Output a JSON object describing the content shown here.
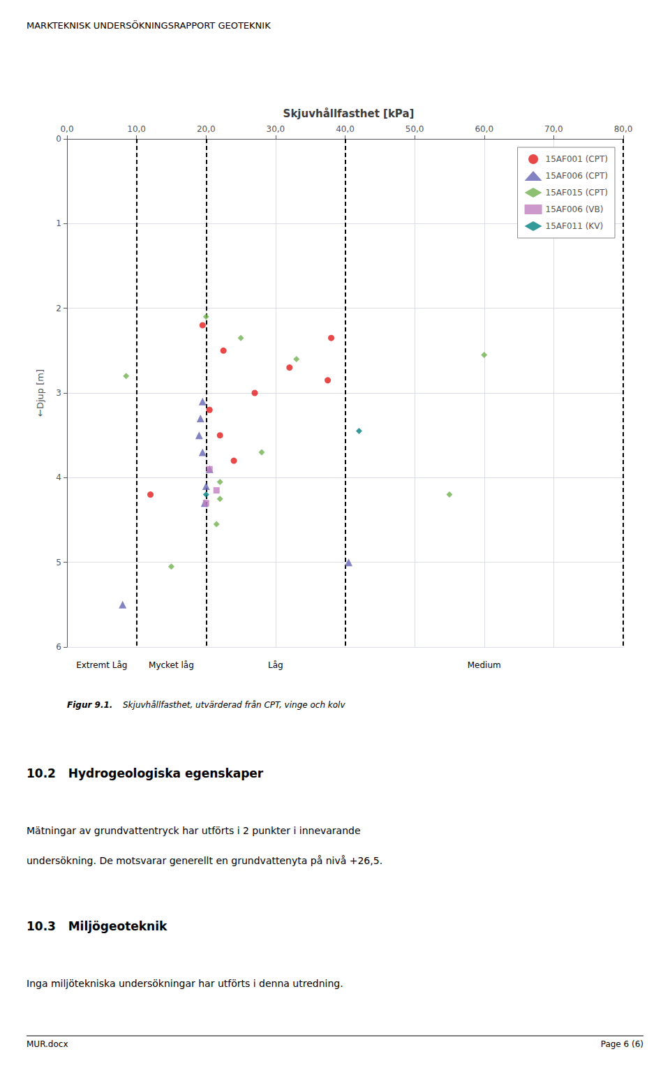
{
  "chart_data": {
    "type": "scatter",
    "header": "MARKTEKNISK UNDERSÖKNINGSRAPPORT GEOTEKNIK",
    "title": "Skjuvhållfasthet [kPa]",
    "ylabel": "←Djup [m]",
    "xlim": [
      0,
      80
    ],
    "ylim": [
      6,
      0
    ],
    "xticks": [
      {
        "value": 0,
        "label": "0,0"
      },
      {
        "value": 10,
        "label": "10,0"
      },
      {
        "value": 20,
        "label": "20,0"
      },
      {
        "value": 30,
        "label": "30,0"
      },
      {
        "value": 40,
        "label": "40,0"
      },
      {
        "value": 50,
        "label": "50,0"
      },
      {
        "value": 60,
        "label": "60,0"
      },
      {
        "value": 70,
        "label": "70,0"
      },
      {
        "value": 80,
        "label": "80,0"
      }
    ],
    "yticks": [
      0,
      1,
      2,
      3,
      4,
      5,
      6
    ],
    "grid": true,
    "legend": "upper right",
    "vlines": [
      10,
      20,
      40,
      80
    ],
    "annotations": [
      {
        "text": "Extremt Låg",
        "x": 5
      },
      {
        "text": "Mycket låg",
        "x": 15
      },
      {
        "text": "Låg",
        "x": 30
      },
      {
        "text": "Medium",
        "x": 60
      }
    ],
    "caption": [
      "Figur 9.1.",
      "Skjuvhållfasthet, utvärderad från CPT, vinge och kolv"
    ],
    "sections": [
      {
        "title": "10.2   Hydrogeologiska egenskaper",
        "paragraphs": [
          "Mätningar av grundvattentryck har utförts i 2 punkter i innevarande",
          "undersökning. De motsvarar generellt en grundvattenyta på nivå +26,5."
        ]
      },
      {
        "title": "10.3   Miljögeoteknik",
        "paragraphs": [
          "Inga miljötekniska undersökningar har utförts i denna utredning."
        ]
      }
    ],
    "footer": [
      "MUR.docx",
      "Page 6 (6)"
    ],
    "series": [
      {
        "name": "15AF001 (CPT)",
        "color": "#e31a1c",
        "marker": "circle",
        "x": [
          19.5,
          22.5,
          27.0,
          32.0,
          37.5,
          38.0,
          20.5,
          22.0,
          24.0,
          12.0
        ],
        "values": [
          2.2,
          2.5,
          3.0,
          2.7,
          2.85,
          2.35,
          3.2,
          3.5,
          3.8,
          4.2
        ]
      },
      {
        "name": "15AF006 (CPT)",
        "color": "#6464b4",
        "marker": "triangle",
        "x": [
          19.5,
          19.2,
          19.0,
          19.5,
          20.5,
          20.0,
          19.8,
          8.0,
          40.5
        ],
        "values": [
          3.1,
          3.3,
          3.5,
          3.7,
          3.9,
          4.1,
          4.3,
          5.5,
          5.0
        ]
      },
      {
        "name": "15AF015 (CPT)",
        "color": "#70b050",
        "marker": "diamond",
        "x": [
          8.5,
          20.0,
          25.0,
          33.0,
          28.0,
          22.0,
          22.0,
          21.5,
          60.0,
          15.0,
          55.0
        ],
        "values": [
          2.8,
          2.1,
          2.35,
          2.6,
          3.7,
          4.05,
          4.25,
          4.55,
          2.55,
          5.05,
          4.2
        ]
      },
      {
        "name": "15AF006 (VB)",
        "color": "#c080c0",
        "marker": "square",
        "x": [
          20.5,
          21.5,
          20.0
        ],
        "values": [
          3.9,
          4.15,
          4.3
        ]
      },
      {
        "name": "15AF011 (KV)",
        "color": "#008080",
        "marker": "diamond",
        "x": [
          42.0,
          20.0
        ],
        "values": [
          3.45,
          4.2
        ]
      }
    ]
  }
}
